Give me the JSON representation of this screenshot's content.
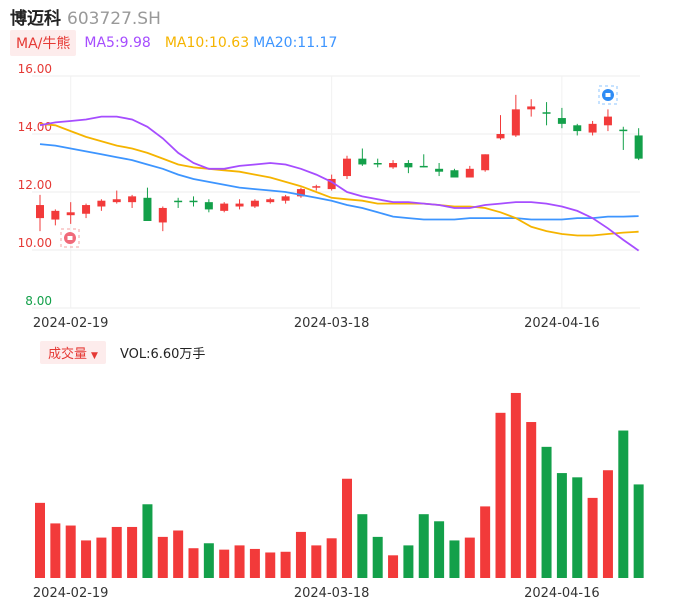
{
  "header": {
    "name": "博迈科",
    "code": "603727.SH"
  },
  "ma_legend": {
    "type_label": "MA/牛熊",
    "ma5": "MA5:9.98",
    "ma10": "MA10:10.63",
    "ma20": "MA20:11.17"
  },
  "volume_legend": {
    "type_label": "成交量",
    "value": "VOL:6.60万手"
  },
  "colors": {
    "up": "#f23a3a",
    "down": "#13a04a",
    "ma5": "#a64dff",
    "ma10": "#f5b400",
    "ma20": "#3d95ff",
    "ytick": "#e53935"
  },
  "chart_data": [
    {
      "type": "candlestick",
      "ylim": [
        8.0,
        16.0
      ],
      "yticks": [
        "16.00",
        "14.00",
        "12.00",
        "10.00",
        "8.00"
      ],
      "xtick_labels": [
        {
          "index": 2,
          "label": "2024-02-19"
        },
        {
          "index": 19,
          "label": "2024-03-18"
        },
        {
          "index": 34,
          "label": "2024-04-16"
        }
      ],
      "grid": true,
      "candles": [
        {
          "o": 11.1,
          "h": 11.9,
          "l": 10.65,
          "c": 11.55
        },
        {
          "o": 11.05,
          "h": 11.4,
          "l": 10.85,
          "c": 11.35
        },
        {
          "o": 11.2,
          "h": 11.65,
          "l": 10.9,
          "c": 11.3
        },
        {
          "o": 11.25,
          "h": 11.6,
          "l": 11.1,
          "c": 11.55
        },
        {
          "o": 11.5,
          "h": 11.75,
          "l": 11.35,
          "c": 11.7
        },
        {
          "o": 11.65,
          "h": 12.05,
          "l": 11.6,
          "c": 11.75
        },
        {
          "o": 11.65,
          "h": 11.9,
          "l": 11.45,
          "c": 11.85
        },
        {
          "o": 11.8,
          "h": 12.15,
          "l": 11.0,
          "c": 11.0
        },
        {
          "o": 10.95,
          "h": 11.5,
          "l": 10.65,
          "c": 11.45
        },
        {
          "o": 11.7,
          "h": 11.8,
          "l": 11.45,
          "c": 11.65
        },
        {
          "o": 11.7,
          "h": 11.85,
          "l": 11.5,
          "c": 11.65
        },
        {
          "o": 11.65,
          "h": 11.75,
          "l": 11.3,
          "c": 11.4
        },
        {
          "o": 11.35,
          "h": 11.65,
          "l": 11.3,
          "c": 11.6
        },
        {
          "o": 11.5,
          "h": 11.75,
          "l": 11.4,
          "c": 11.6
        },
        {
          "o": 11.5,
          "h": 11.75,
          "l": 11.45,
          "c": 11.7
        },
        {
          "o": 11.65,
          "h": 11.8,
          "l": 11.6,
          "c": 11.75
        },
        {
          "o": 11.7,
          "h": 11.9,
          "l": 11.6,
          "c": 11.85
        },
        {
          "o": 11.85,
          "h": 12.15,
          "l": 11.8,
          "c": 12.1
        },
        {
          "o": 12.15,
          "h": 12.25,
          "l": 12.05,
          "c": 12.2
        },
        {
          "o": 12.1,
          "h": 12.6,
          "l": 12.05,
          "c": 12.45
        },
        {
          "o": 12.55,
          "h": 13.25,
          "l": 12.45,
          "c": 13.15
        },
        {
          "o": 13.15,
          "h": 13.5,
          "l": 12.9,
          "c": 12.95
        },
        {
          "o": 13.0,
          "h": 13.15,
          "l": 12.85,
          "c": 12.95
        },
        {
          "o": 12.85,
          "h": 13.1,
          "l": 12.8,
          "c": 13.0
        },
        {
          "o": 13.0,
          "h": 13.1,
          "l": 12.65,
          "c": 12.85
        },
        {
          "o": 12.9,
          "h": 13.3,
          "l": 12.85,
          "c": 12.85
        },
        {
          "o": 12.8,
          "h": 13.0,
          "l": 12.55,
          "c": 12.7
        },
        {
          "o": 12.75,
          "h": 12.8,
          "l": 12.5,
          "c": 12.5
        },
        {
          "o": 12.5,
          "h": 12.9,
          "l": 12.5,
          "c": 12.8
        },
        {
          "o": 12.75,
          "h": 13.3,
          "l": 12.7,
          "c": 13.3
        },
        {
          "o": 13.85,
          "h": 14.65,
          "l": 13.8,
          "c": 14.0
        },
        {
          "o": 13.95,
          "h": 15.35,
          "l": 13.9,
          "c": 14.85
        },
        {
          "o": 14.85,
          "h": 15.2,
          "l": 14.6,
          "c": 14.95
        },
        {
          "o": 14.75,
          "h": 15.1,
          "l": 14.3,
          "c": 14.7
        },
        {
          "o": 14.55,
          "h": 14.9,
          "l": 14.2,
          "c": 14.35
        },
        {
          "o": 14.3,
          "h": 14.35,
          "l": 13.95,
          "c": 14.1
        },
        {
          "o": 14.05,
          "h": 14.45,
          "l": 13.95,
          "c": 14.35
        },
        {
          "o": 14.3,
          "h": 14.85,
          "l": 14.1,
          "c": 14.6
        },
        {
          "o": 14.15,
          "h": 14.25,
          "l": 13.45,
          "c": 14.1
        },
        {
          "o": 13.95,
          "h": 14.2,
          "l": 13.1,
          "c": 13.15
        }
      ],
      "ma5": [
        14.3,
        14.4,
        14.45,
        14.5,
        14.6,
        14.6,
        14.5,
        14.25,
        13.85,
        13.35,
        13.0,
        12.8,
        12.8,
        12.9,
        12.95,
        13.0,
        12.95,
        12.8,
        12.6,
        12.35,
        12.0,
        11.85,
        11.75,
        11.65,
        11.65,
        11.6,
        11.55,
        11.45,
        11.45,
        11.55,
        11.6,
        11.65,
        11.65,
        11.6,
        11.5,
        11.35,
        11.1,
        10.75,
        10.35,
        9.98
      ],
      "ma10": [
        14.35,
        14.3,
        14.1,
        13.9,
        13.75,
        13.6,
        13.5,
        13.35,
        13.15,
        12.95,
        12.85,
        12.8,
        12.75,
        12.7,
        12.6,
        12.5,
        12.35,
        12.2,
        12.0,
        11.8,
        11.75,
        11.7,
        11.6,
        11.6,
        11.6,
        11.6,
        11.55,
        11.5,
        11.5,
        11.45,
        11.3,
        11.1,
        10.8,
        10.65,
        10.55,
        10.5,
        10.5,
        10.55,
        10.6,
        10.63
      ],
      "ma20": [
        13.65,
        13.6,
        13.5,
        13.4,
        13.3,
        13.2,
        13.1,
        12.95,
        12.8,
        12.6,
        12.45,
        12.35,
        12.25,
        12.15,
        12.1,
        12.05,
        12.0,
        11.9,
        11.8,
        11.7,
        11.55,
        11.45,
        11.3,
        11.15,
        11.1,
        11.05,
        11.05,
        11.05,
        11.1,
        11.1,
        11.1,
        11.1,
        11.05,
        11.05,
        11.05,
        11.1,
        11.1,
        11.15,
        11.15,
        11.17
      ]
    },
    {
      "type": "bar",
      "title": "成交量",
      "xtick_labels": [
        {
          "index": 2,
          "label": "2024-02-19"
        },
        {
          "index": 19,
          "label": "2024-03-18"
        },
        {
          "index": 34,
          "label": "2024-04-16"
        }
      ],
      "values": [
        5.3,
        3.85,
        3.7,
        2.65,
        2.85,
        3.6,
        3.6,
        5.2,
        2.9,
        3.35,
        2.1,
        2.45,
        2.0,
        2.3,
        2.05,
        1.8,
        1.85,
        3.25,
        2.3,
        2.8,
        7.0,
        4.5,
        2.9,
        1.6,
        2.3,
        4.5,
        4.0,
        2.65,
        2.85,
        5.05,
        11.65,
        13.05,
        11.0,
        9.25,
        7.4,
        7.1,
        5.65,
        7.6,
        10.4,
        6.6
      ],
      "directions": [
        "up",
        "up",
        "up",
        "up",
        "up",
        "up",
        "up",
        "down",
        "up",
        "up",
        "up",
        "down",
        "up",
        "up",
        "up",
        "up",
        "up",
        "up",
        "up",
        "up",
        "up",
        "down",
        "down",
        "up",
        "down",
        "down",
        "down",
        "down",
        "up",
        "up",
        "up",
        "up",
        "up",
        "down",
        "down",
        "down",
        "up",
        "up",
        "down",
        "down"
      ]
    }
  ]
}
